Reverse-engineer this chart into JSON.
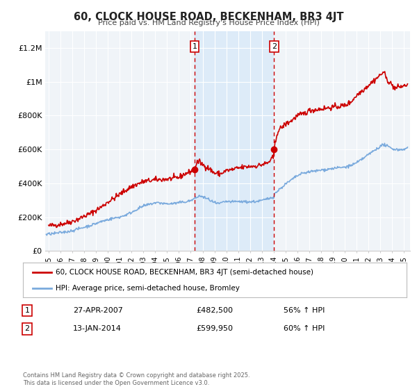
{
  "title": "60, CLOCK HOUSE ROAD, BECKENHAM, BR3 4JT",
  "subtitle": "Price paid vs. HM Land Registry's House Price Index (HPI)",
  "ylim": [
    0,
    1300000
  ],
  "yticks": [
    0,
    200000,
    400000,
    600000,
    800000,
    1000000,
    1200000
  ],
  "ytick_labels": [
    "£0",
    "£200K",
    "£400K",
    "£600K",
    "£800K",
    "£1M",
    "£1.2M"
  ],
  "xlim_start": 1994.7,
  "xlim_end": 2025.5,
  "background_color": "#ffffff",
  "plot_bg_color": "#f0f4f8",
  "grid_color": "#ffffff",
  "line1_color": "#cc0000",
  "line2_color": "#7aaadd",
  "line1_label": "60, CLOCK HOUSE ROAD, BECKENHAM, BR3 4JT (semi-detached house)",
  "line2_label": "HPI: Average price, semi-detached house, Bromley",
  "marker1_x": 2007.32,
  "marker1_y": 482500,
  "marker2_x": 2014.04,
  "marker2_y": 599950,
  "vline1_x": 2007.32,
  "vline2_x": 2014.04,
  "shade_start": 2007.32,
  "shade_end": 2014.04,
  "annotation1_label": "1",
  "annotation1_date": "27-APR-2007",
  "annotation1_price": "£482,500",
  "annotation1_hpi": "56% ↑ HPI",
  "annotation2_label": "2",
  "annotation2_date": "13-JAN-2014",
  "annotation2_price": "£599,950",
  "annotation2_hpi": "60% ↑ HPI",
  "footer": "Contains HM Land Registry data © Crown copyright and database right 2025.\nThis data is licensed under the Open Government Licence v3.0."
}
